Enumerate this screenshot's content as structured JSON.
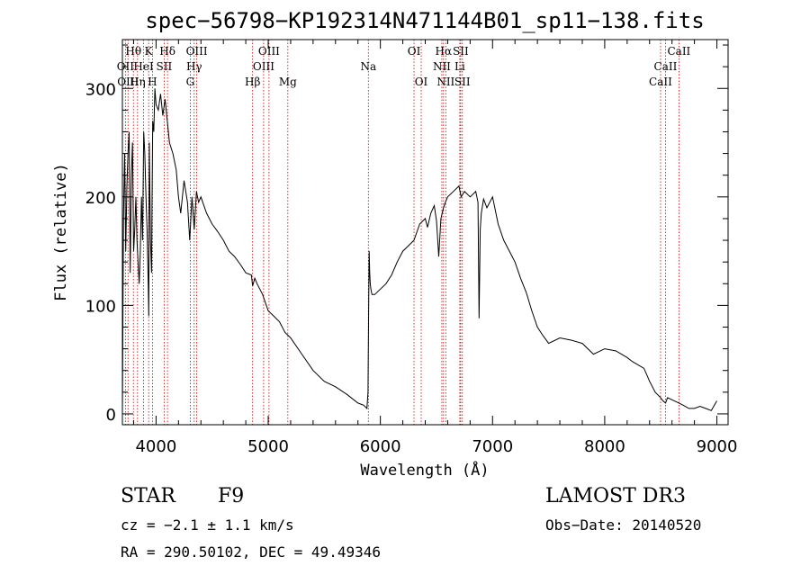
{
  "chart_data": {
    "type": "line",
    "title": "spec−56798−KP192314N471144B01_sp11−138.fits",
    "xlabel": "Wavelength (Å)",
    "ylabel": "Flux (relative)",
    "xlim": [
      3700,
      9100
    ],
    "ylim": [
      -10,
      345
    ],
    "xticks": [
      4000,
      5000,
      6000,
      7000,
      8000,
      9000
    ],
    "yticks": [
      0,
      100,
      200,
      300
    ],
    "grid": false,
    "series": [
      {
        "name": "flux",
        "x": [
          3700,
          3710,
          3720,
          3730,
          3740,
          3750,
          3760,
          3770,
          3780,
          3790,
          3800,
          3810,
          3820,
          3830,
          3840,
          3850,
          3860,
          3870,
          3880,
          3890,
          3900,
          3910,
          3920,
          3930,
          3935,
          3940,
          3950,
          3960,
          3965,
          3970,
          3980,
          3990,
          4000,
          4020,
          4040,
          4060,
          4080,
          4100,
          4120,
          4150,
          4180,
          4200,
          4220,
          4250,
          4280,
          4300,
          4320,
          4340,
          4360,
          4380,
          4400,
          4450,
          4500,
          4550,
          4600,
          4650,
          4700,
          4750,
          4800,
          4850,
          4861,
          4880,
          4900,
          4950,
          5000,
          5050,
          5100,
          5150,
          5200,
          5300,
          5400,
          5500,
          5600,
          5700,
          5800,
          5850,
          5880,
          5890,
          5895,
          5900,
          5905,
          5910,
          5915,
          5925,
          5950,
          6000,
          6050,
          6100,
          6150,
          6200,
          6250,
          6300,
          6350,
          6400,
          6420,
          6450,
          6480,
          6500,
          6520,
          6540,
          6563,
          6580,
          6600,
          6650,
          6700,
          6720,
          6750,
          6800,
          6850,
          6870,
          6880,
          6890,
          6900,
          6920,
          6950,
          7000,
          7050,
          7100,
          7150,
          7200,
          7250,
          7300,
          7350,
          7400,
          7450,
          7500,
          7600,
          7700,
          7800,
          7900,
          8000,
          8100,
          8200,
          8250,
          8300,
          8350,
          8400,
          8450,
          8498,
          8520,
          8542,
          8560,
          8600,
          8662,
          8700,
          8750,
          8800,
          8850,
          8900,
          8950,
          9000
        ],
        "values": [
          0,
          180,
          240,
          150,
          210,
          240,
          260,
          130,
          220,
          250,
          150,
          170,
          200,
          160,
          140,
          120,
          150,
          200,
          160,
          260,
          240,
          200,
          170,
          120,
          90,
          250,
          160,
          130,
          200,
          270,
          260,
          300,
          285,
          280,
          295,
          275,
          290,
          270,
          250,
          240,
          225,
          200,
          185,
          215,
          195,
          160,
          200,
          170,
          205,
          195,
          200,
          185,
          175,
          168,
          160,
          150,
          145,
          138,
          130,
          128,
          118,
          125,
          120,
          110,
          95,
          90,
          85,
          75,
          70,
          55,
          40,
          30,
          25,
          18,
          10,
          8,
          5,
          20,
          95,
          150,
          130,
          120,
          115,
          110,
          110,
          115,
          120,
          128,
          140,
          150,
          155,
          160,
          175,
          180,
          172,
          185,
          192,
          178,
          145,
          180,
          190,
          195,
          200,
          205,
          210,
          200,
          205,
          200,
          205,
          195,
          88,
          170,
          185,
          198,
          190,
          200,
          175,
          160,
          150,
          140,
          125,
          112,
          95,
          80,
          72,
          65,
          70,
          68,
          65,
          55,
          60,
          58,
          52,
          48,
          45,
          42,
          30,
          20,
          15,
          12,
          10,
          15,
          13,
          10,
          8,
          5,
          5,
          7,
          5,
          3,
          12
        ]
      }
    ],
    "lines": [
      {
        "label": "Hθ",
        "row": 1,
        "wavelength": 3798
      },
      {
        "label": "K",
        "row": 1,
        "wavelength": 3934
      },
      {
        "label": "Hδ",
        "row": 1,
        "wavelength": 4102
      },
      {
        "label": "OIII",
        "row": 1,
        "wavelength": 4363
      },
      {
        "label": "OIII",
        "row": 1,
        "wavelength": 5007
      },
      {
        "label": "OI",
        "row": 1,
        "wavelength": 6300
      },
      {
        "label": "Hα",
        "row": 1,
        "wavelength": 6563
      },
      {
        "label": "SII",
        "row": 1,
        "wavelength": 6716
      },
      {
        "label": "CaII",
        "row": 1,
        "wavelength": 8662
      },
      {
        "label": "OII",
        "row": 2,
        "wavelength": 3727
      },
      {
        "label": "HeI",
        "row": 2,
        "wavelength": 3889
      },
      {
        "label": "SII",
        "row": 2,
        "wavelength": 4072
      },
      {
        "label": "Hγ",
        "row": 2,
        "wavelength": 4340
      },
      {
        "label": "OIII",
        "row": 2,
        "wavelength": 4959
      },
      {
        "label": "Na",
        "row": 2,
        "wavelength": 5893
      },
      {
        "label": "NII",
        "row": 2,
        "wavelength": 6548
      },
      {
        "label": "Li",
        "row": 2,
        "wavelength": 6708
      },
      {
        "label": "CaII",
        "row": 2,
        "wavelength": 8542
      },
      {
        "label": "OIII",
        "row": 3,
        "wavelength": 3750
      },
      {
        "label": "Hη",
        "row": 3,
        "wavelength": 3835
      },
      {
        "label": "H",
        "row": 3,
        "wavelength": 3968
      },
      {
        "label": "G",
        "row": 3,
        "wavelength": 4305
      },
      {
        "label": "Hβ",
        "row": 3,
        "wavelength": 4861
      },
      {
        "label": "Mg",
        "row": 3,
        "wavelength": 5175
      },
      {
        "label": "OI",
        "row": 3,
        "wavelength": 6364
      },
      {
        "label": "NII",
        "row": 3,
        "wavelength": 6583
      },
      {
        "label": "SII",
        "row": 3,
        "wavelength": 6731
      },
      {
        "label": "CaII",
        "row": 3,
        "wavelength": 8498
      }
    ]
  },
  "info": {
    "class": "STAR",
    "subclass": "F9",
    "survey": "LAMOST DR3",
    "cz": "cz = −2.1 ± 1.1 km/s",
    "obs_date": "Obs−Date: 20140520",
    "radec": "RA = 290.50102, DEC =  49.49346"
  },
  "colors": {
    "spectrum": "#000000",
    "line_marker": "#c00000"
  }
}
